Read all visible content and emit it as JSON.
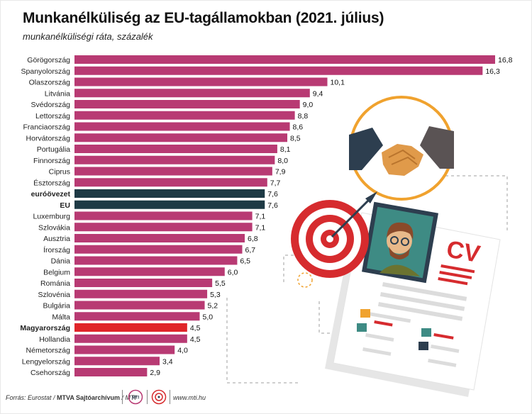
{
  "title": "Munkanélküliség az EU-tagállamokban (2021. július)",
  "subtitle": "munkanélküliségi ráta, százalék",
  "chart_data": {
    "type": "bar",
    "orientation": "horizontal",
    "categories": [
      "Görögország",
      "Spanyolország",
      "Olaszország",
      "Litvánia",
      "Svédország",
      "Lettország",
      "Franciaország",
      "Horvátország",
      "Portugália",
      "Finnország",
      "Ciprus",
      "Észtország",
      "euróövezet",
      "EU",
      "Luxemburg",
      "Szlovákia",
      "Ausztria",
      "Írország",
      "Dánia",
      "Belgium",
      "Románia",
      "Szlovénia",
      "Bulgária",
      "Málta",
      "Magyarország",
      "Hollandia",
      "Németország",
      "Lengyelország",
      "Csehország"
    ],
    "values": [
      16.8,
      16.3,
      10.1,
      9.4,
      9.0,
      8.8,
      8.6,
      8.5,
      8.1,
      8.0,
      7.9,
      7.7,
      7.6,
      7.6,
      7.1,
      7.1,
      6.8,
      6.7,
      6.5,
      6.0,
      5.5,
      5.3,
      5.2,
      5.0,
      4.5,
      4.5,
      4.0,
      3.4,
      2.9
    ],
    "value_labels": [
      "16,8",
      "16,3",
      "10,1",
      "9,4",
      "9,0",
      "8,8",
      "8,6",
      "8,5",
      "8,1",
      "8,0",
      "7,9",
      "7,7",
      "7,6",
      "7,6",
      "7,1",
      "7,1",
      "6,8",
      "6,7",
      "6,5",
      "6,0",
      "5,5",
      "5,3",
      "5,2",
      "5,0",
      "4,5",
      "4,5",
      "4,0",
      "3,4",
      "2,9"
    ],
    "bold_categories": [
      "euróövezet",
      "EU",
      "Magyarország"
    ],
    "bar_colors": {
      "default": "#b83a73",
      "euróövezet": "#1e3a45",
      "EU": "#1e3a45",
      "Magyarország": "#e0252a"
    },
    "xlim": [
      0,
      16.8
    ],
    "grid": false,
    "xlabel": "",
    "ylabel": ""
  },
  "footer": {
    "source_prefix": "Forrás: Eurostat / ",
    "source_bold": "MTVA Sajtóarchívum",
    "source_suffix": " / MTI",
    "logo_1": "mti-logo",
    "logo_2": "target-logo",
    "website": "www.mti.hu"
  },
  "illustration": {
    "cv_text": "CV",
    "icons": [
      "handshake-icon",
      "target-icon",
      "arrow-icon",
      "person-avatar-icon",
      "cv-document-icon"
    ],
    "colors": {
      "orange": "#f0a22e",
      "red": "#d62b2e",
      "teal": "#3e8b84",
      "skin": "#e8b98a"
    }
  }
}
